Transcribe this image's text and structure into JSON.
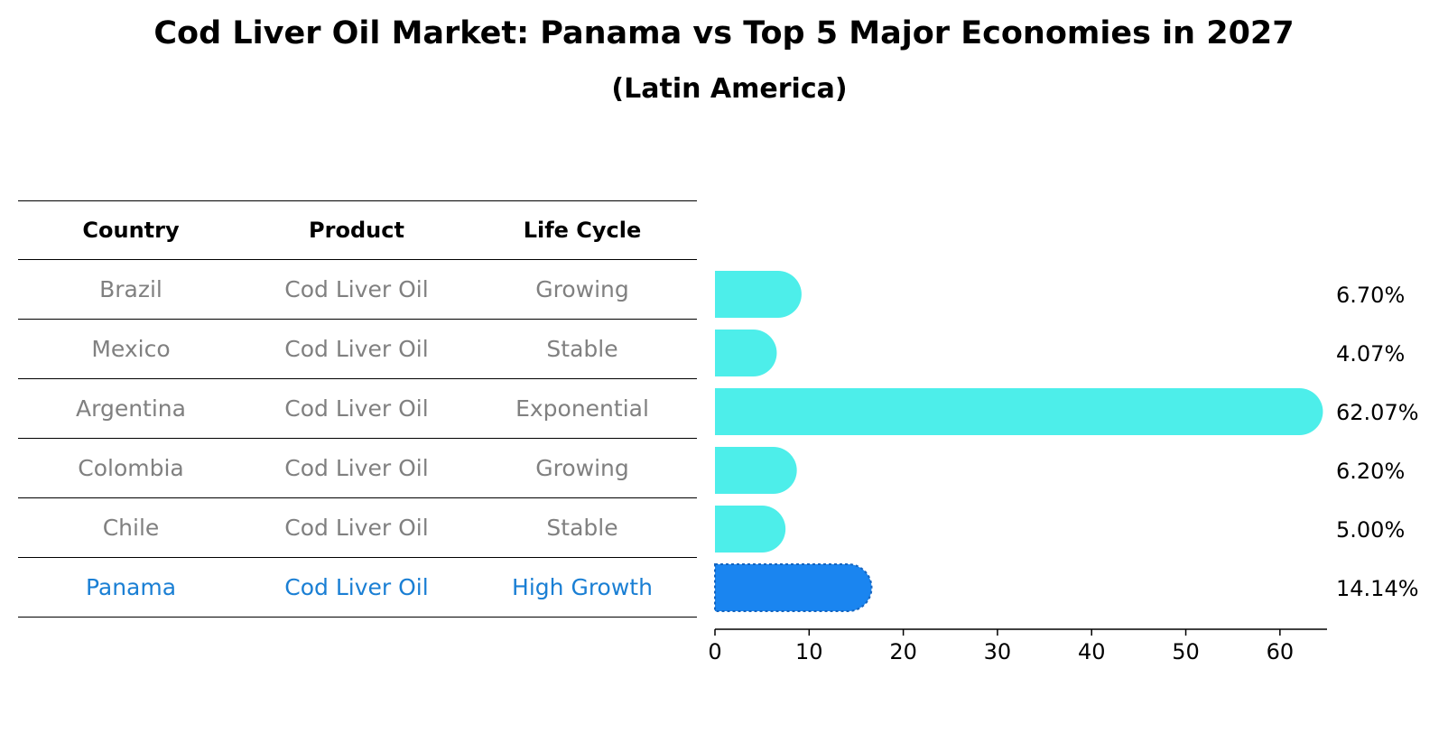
{
  "title": "Cod Liver Oil Market: Panama vs Top 5 Major Economies in 2027",
  "subtitle": "(Latin America)",
  "table": {
    "headers": [
      "Country",
      "Product",
      "Life Cycle"
    ],
    "rows": [
      {
        "country": "Brazil",
        "product": "Cod Liver Oil",
        "life_cycle": "Growing"
      },
      {
        "country": "Mexico",
        "product": "Cod Liver Oil",
        "life_cycle": "Stable"
      },
      {
        "country": "Argentina",
        "product": "Cod Liver Oil",
        "life_cycle": "Exponential"
      },
      {
        "country": "Colombia",
        "product": "Cod Liver Oil",
        "life_cycle": "Growing"
      },
      {
        "country": "Chile",
        "product": "Cod Liver Oil",
        "life_cycle": "Stable"
      },
      {
        "country": "Panama",
        "product": "Cod Liver Oil",
        "life_cycle": "High Growth"
      }
    ]
  },
  "colors": {
    "bar": "#4DEEEA",
    "highlight_bar": "#1A85F0",
    "highlight_text": "#1A7FD4",
    "muted_text": "#808080"
  },
  "chart_data": {
    "type": "bar",
    "orientation": "horizontal",
    "title": "Cod Liver Oil Market: Panama vs Top 5 Major Economies in 2027",
    "subtitle": "(Latin America)",
    "categories": [
      "Brazil",
      "Mexico",
      "Argentina",
      "Colombia",
      "Chile",
      "Panama"
    ],
    "values": [
      6.7,
      4.07,
      62.07,
      6.2,
      5.0,
      14.14
    ],
    "value_labels": [
      "6.70%",
      "4.07%",
      "62.07%",
      "6.20%",
      "5.00%",
      "14.14%"
    ],
    "highlight": "Panama",
    "xlim": [
      0,
      65
    ],
    "xticks": [
      0,
      10,
      20,
      30,
      40,
      50,
      60
    ],
    "xlabel": "",
    "ylabel": "",
    "grid": false
  }
}
